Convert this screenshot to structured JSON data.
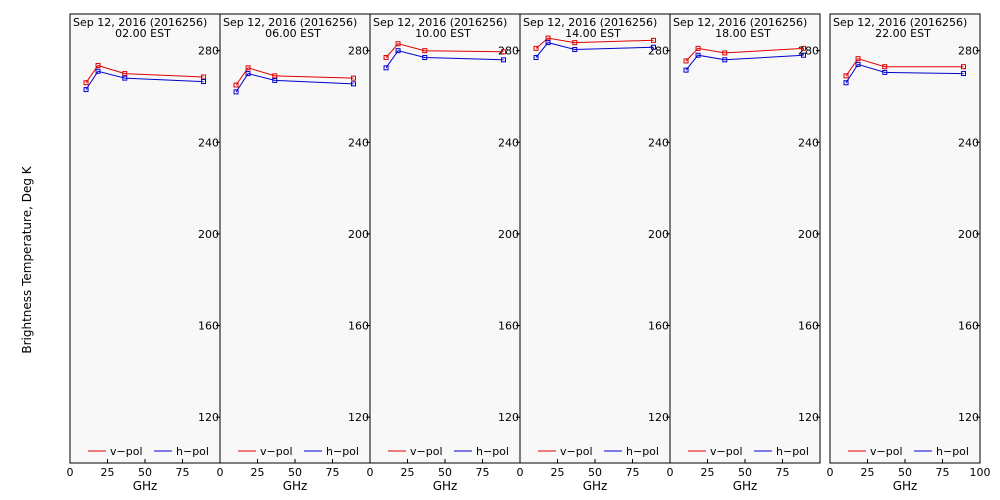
{
  "ylabel": "Brightness Temperature, Deg K",
  "legend": {
    "v_label": "v−pol",
    "h_label": "h−pol"
  },
  "colors": {
    "v": "#e00000",
    "h": "#0000d0",
    "background": "#f8f8f8"
  },
  "chart_data": [
    {
      "type": "line",
      "title": "Sep 12, 2016 (2016256)",
      "subtitle": "02.00 EST",
      "xlabel": "GHz",
      "ylabel": "Brightness Temperature, Deg K",
      "xlim": [
        0,
        100
      ],
      "ylim": [
        100,
        296
      ],
      "xticks": [
        "0",
        "25",
        "50",
        "75"
      ],
      "yticks": [
        "120",
        "160",
        "200",
        "240",
        "280"
      ],
      "x": [
        10.7,
        18.7,
        36.5,
        89
      ],
      "series": [
        {
          "name": "v−pol",
          "values": [
            266,
            273.5,
            270,
            268.5
          ]
        },
        {
          "name": "h−pol",
          "values": [
            263,
            271,
            268,
            266.5
          ]
        }
      ]
    },
    {
      "type": "line",
      "title": "Sep 12, 2016 (2016256)",
      "subtitle": "06.00 EST",
      "xlabel": "GHz",
      "ylabel": "",
      "xlim": [
        0,
        100
      ],
      "ylim": [
        100,
        296
      ],
      "xticks": [
        "0",
        "25",
        "50",
        "75"
      ],
      "yticks": [
        "120",
        "160",
        "200",
        "240",
        "280"
      ],
      "x": [
        10.7,
        18.7,
        36.5,
        89
      ],
      "series": [
        {
          "name": "v−pol",
          "values": [
            265,
            272.5,
            269,
            268
          ]
        },
        {
          "name": "h−pol",
          "values": [
            262,
            270,
            267,
            265.5
          ]
        }
      ]
    },
    {
      "type": "line",
      "title": "Sep 12, 2016 (2016256)",
      "subtitle": "10.00 EST",
      "xlabel": "GHz",
      "ylabel": "",
      "xlim": [
        0,
        100
      ],
      "ylim": [
        100,
        296
      ],
      "xticks": [
        "0",
        "25",
        "50",
        "75"
      ],
      "yticks": [
        "120",
        "160",
        "200",
        "240",
        "280"
      ],
      "x": [
        10.7,
        18.7,
        36.5,
        89
      ],
      "series": [
        {
          "name": "v−pol",
          "values": [
            277,
            283,
            280,
            279.5
          ]
        },
        {
          "name": "h−pol",
          "values": [
            272.5,
            280,
            277,
            276
          ]
        }
      ]
    },
    {
      "type": "line",
      "title": "Sep 12, 2016 (2016256)",
      "subtitle": "14.00 EST",
      "xlabel": "GHz",
      "ylabel": "",
      "xlim": [
        0,
        100
      ],
      "ylim": [
        100,
        296
      ],
      "xticks": [
        "0",
        "25",
        "50",
        "75"
      ],
      "yticks": [
        "120",
        "160",
        "200",
        "240",
        "280"
      ],
      "x": [
        10.7,
        18.7,
        36.5,
        89
      ],
      "series": [
        {
          "name": "v−pol",
          "values": [
            281,
            285.5,
            283.5,
            284.5
          ]
        },
        {
          "name": "h−pol",
          "values": [
            277,
            283.5,
            280.5,
            281.5
          ]
        }
      ]
    },
    {
      "type": "line",
      "title": "Sep 12, 2016 (2016256)",
      "subtitle": "18.00 EST",
      "xlabel": "GHz",
      "ylabel": "",
      "xlim": [
        0,
        100
      ],
      "ylim": [
        100,
        296
      ],
      "xticks": [
        "0",
        "25",
        "50",
        "75"
      ],
      "yticks": [
        "120",
        "160",
        "200",
        "240",
        "280"
      ],
      "x": [
        10.7,
        18.7,
        36.5,
        89
      ],
      "series": [
        {
          "name": "v−pol",
          "values": [
            275.5,
            281,
            279,
            281
          ]
        },
        {
          "name": "h−pol",
          "values": [
            271.5,
            278,
            276,
            278
          ]
        }
      ]
    },
    {
      "type": "line",
      "title": "Sep 12, 2016 (2016256)",
      "subtitle": "22.00 EST",
      "xlabel": "GHz",
      "ylabel": "",
      "xlim": [
        0,
        100
      ],
      "ylim": [
        100,
        296
      ],
      "xticks": [
        "0",
        "25",
        "50",
        "75",
        "100"
      ],
      "yticks": [
        "120",
        "160",
        "200",
        "240",
        "280"
      ],
      "x": [
        10.7,
        18.7,
        36.5,
        89
      ],
      "series": [
        {
          "name": "v−pol",
          "values": [
            269,
            276.5,
            273,
            273
          ]
        },
        {
          "name": "h−pol",
          "values": [
            266,
            274,
            270.5,
            270
          ]
        }
      ]
    }
  ]
}
